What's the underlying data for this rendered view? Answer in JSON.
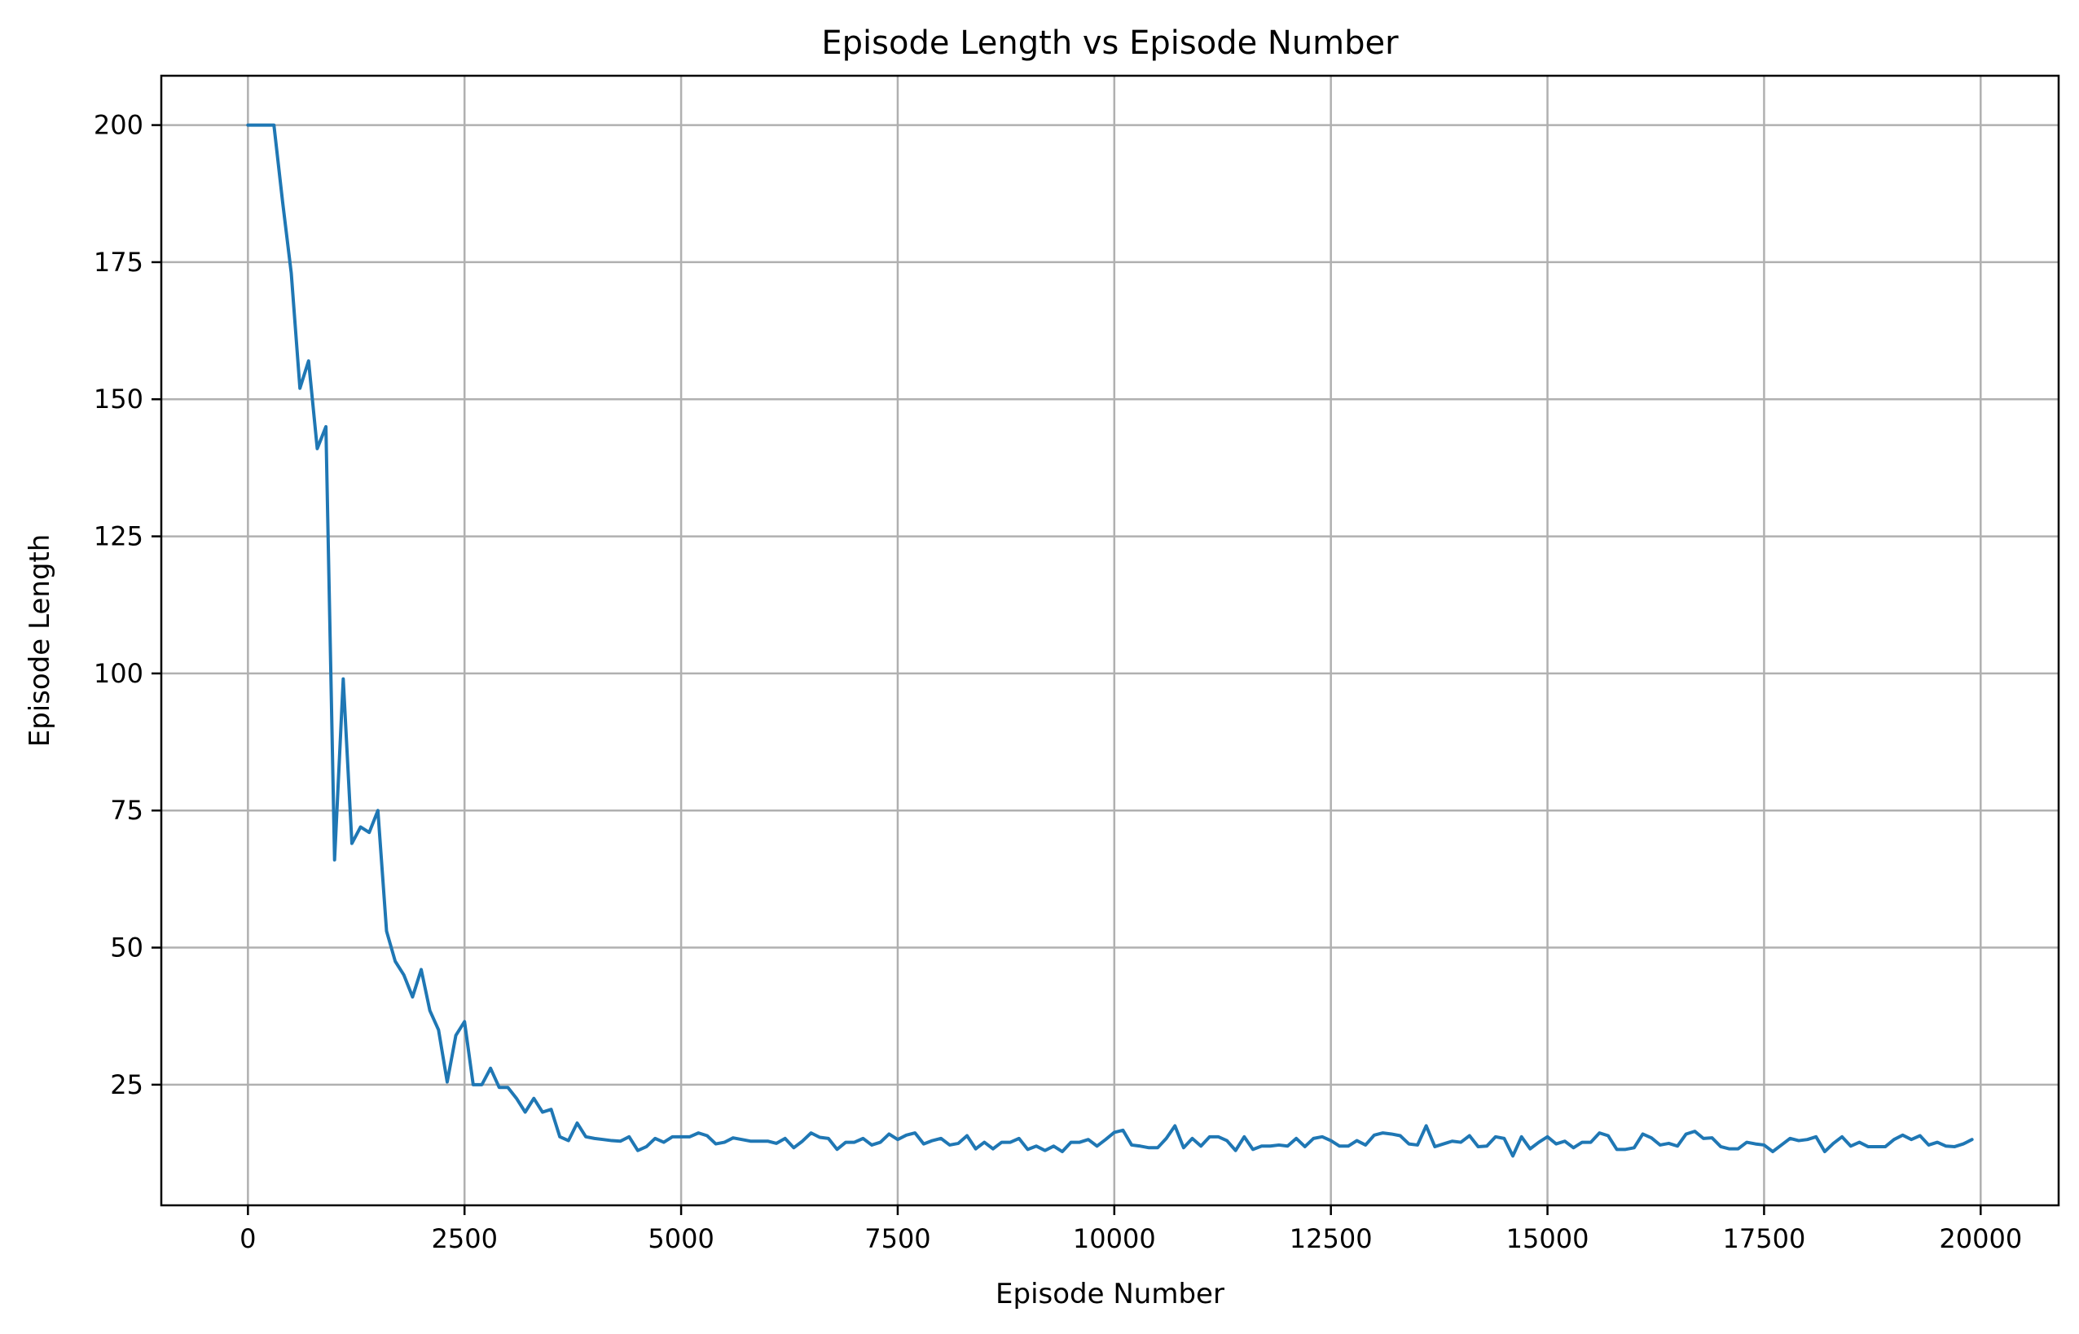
{
  "chart_data": {
    "type": "line",
    "title": "Episode Length vs Episode Number",
    "xlabel": "Episode Number",
    "ylabel": "Episode Length",
    "xlim": [
      -1000,
      20900
    ],
    "ylim": [
      3,
      209
    ],
    "xticks": [
      0,
      2500,
      5000,
      7500,
      10000,
      12500,
      15000,
      17500,
      20000
    ],
    "yticks": [
      25,
      50,
      75,
      100,
      125,
      150,
      175,
      200
    ],
    "grid": true,
    "legend": "none",
    "line_color": "#1f77b4",
    "series": [
      {
        "x": [
          0,
          100,
          200,
          300,
          400,
          500,
          600,
          700,
          800,
          900,
          1000,
          1100,
          1200,
          1300,
          1400,
          1500,
          1600,
          1700,
          1800,
          1900,
          2000,
          2100,
          2200,
          2300,
          2400,
          2500,
          2600,
          2700,
          2800,
          2900,
          3000,
          3100,
          3200,
          3300,
          3400,
          3500,
          3600,
          3700,
          3800,
          3900,
          4000,
          4100,
          4200,
          4300,
          4400,
          4500,
          4600,
          4700,
          4800,
          4900,
          5000,
          5100,
          5200,
          5300,
          5400,
          5500,
          5600,
          5700,
          5800,
          5900,
          6000,
          6100,
          6200,
          6300,
          6400,
          6500,
          6600,
          6700,
          6800,
          6900,
          7000,
          7100,
          7200,
          7300,
          7400,
          7500,
          7600,
          7700,
          7800,
          7900,
          8000,
          8100,
          8200,
          8300,
          8400,
          8500,
          8600,
          8700,
          8800,
          8900,
          9000,
          9100,
          9200,
          9300,
          9400,
          9500,
          9600,
          9700,
          9800,
          9900,
          10000,
          10100,
          10200,
          10300,
          10400,
          10500,
          10600,
          10700,
          10800,
          10900,
          11000,
          11100,
          11200,
          11300,
          11400,
          11500,
          11600,
          11700,
          11800,
          11900,
          12000,
          12100,
          12200,
          12300,
          12400,
          12500,
          12600,
          12700,
          12800,
          12900,
          13000,
          13100,
          13200,
          13300,
          13400,
          13500,
          13600,
          13700,
          13800,
          13900,
          14000,
          14100,
          14200,
          14300,
          14400,
          14500,
          14600,
          14700,
          14800,
          14900,
          15000,
          15100,
          15200,
          15300,
          15400,
          15500,
          15600,
          15700,
          15800,
          15900,
          16000,
          16100,
          16200,
          16300,
          16400,
          16500,
          16600,
          16700,
          16800,
          16900,
          17000,
          17100,
          17200,
          17300,
          17400,
          17500,
          17600,
          17700,
          17800,
          17900,
          18000,
          18100,
          18200,
          18300,
          18400,
          18500,
          18600,
          18700,
          18800,
          18900,
          19000,
          19100,
          19200,
          19300,
          19400,
          19500,
          19600,
          19700,
          19800,
          19900
        ],
        "values": [
          200,
          200,
          200,
          200,
          186,
          173,
          152,
          157,
          141,
          145,
          66,
          99,
          69,
          72,
          71,
          75,
          53,
          47.5,
          45,
          41,
          46,
          38.5,
          35,
          25.5,
          34,
          36.5,
          25,
          25,
          28,
          24.5,
          24.5,
          22.5,
          20,
          22.5,
          20,
          20.5,
          15.5,
          14.8,
          18,
          15.5,
          15.2,
          15,
          14.8,
          14.7,
          15.5,
          13,
          13.7,
          15.2,
          14.5,
          15.5,
          15.5,
          15.5,
          16.2,
          15.7,
          14.2,
          14.5,
          15.3,
          15,
          14.7,
          14.7,
          14.7,
          14.3,
          15.2,
          13.5,
          14.7,
          16.2,
          15.4,
          15.2,
          13.2,
          14.5,
          14.5,
          15.2,
          14,
          14.5,
          16,
          15,
          15.8,
          16.2,
          14.2,
          14.8,
          15.2,
          14,
          14.3,
          15.7,
          13.3,
          14.5,
          13.3,
          14.5,
          14.5,
          15.2,
          13.2,
          13.8,
          13,
          13.8,
          12.8,
          14.5,
          14.5,
          15,
          13.8,
          15,
          16.3,
          16.7,
          14,
          13.8,
          13.5,
          13.5,
          15.2,
          17.5,
          13.5,
          15.2,
          13.8,
          15.5,
          15.5,
          14.8,
          13,
          15.5,
          13.2,
          13.8,
          13.8,
          14,
          13.8,
          15.2,
          13.7,
          15.2,
          15.5,
          14.8,
          13.8,
          13.8,
          14.8,
          14,
          15.8,
          16.2,
          16,
          15.7,
          14.2,
          14,
          17.5,
          13.7,
          14.2,
          14.7,
          14.5,
          15.7,
          13.7,
          13.8,
          15.5,
          15.2,
          12,
          15.5,
          13.3,
          14.5,
          15.5,
          14.2,
          14.7,
          13.5,
          14.5,
          14.5,
          16.2,
          15.7,
          13.2,
          13.2,
          13.5,
          16,
          15.3,
          14,
          14.3,
          13.8,
          16,
          16.5,
          15.2,
          15.3,
          13.7,
          13.3,
          13.3,
          14.5,
          14.2,
          14,
          12.8,
          14,
          15.2,
          14.8,
          15,
          15.5,
          12.8,
          14.3,
          15.5,
          13.8,
          14.5,
          13.7,
          13.7,
          13.7,
          15,
          15.8,
          15,
          15.7,
          14,
          14.5,
          13.8,
          13.7,
          14.2,
          15
        ]
      }
    ]
  }
}
